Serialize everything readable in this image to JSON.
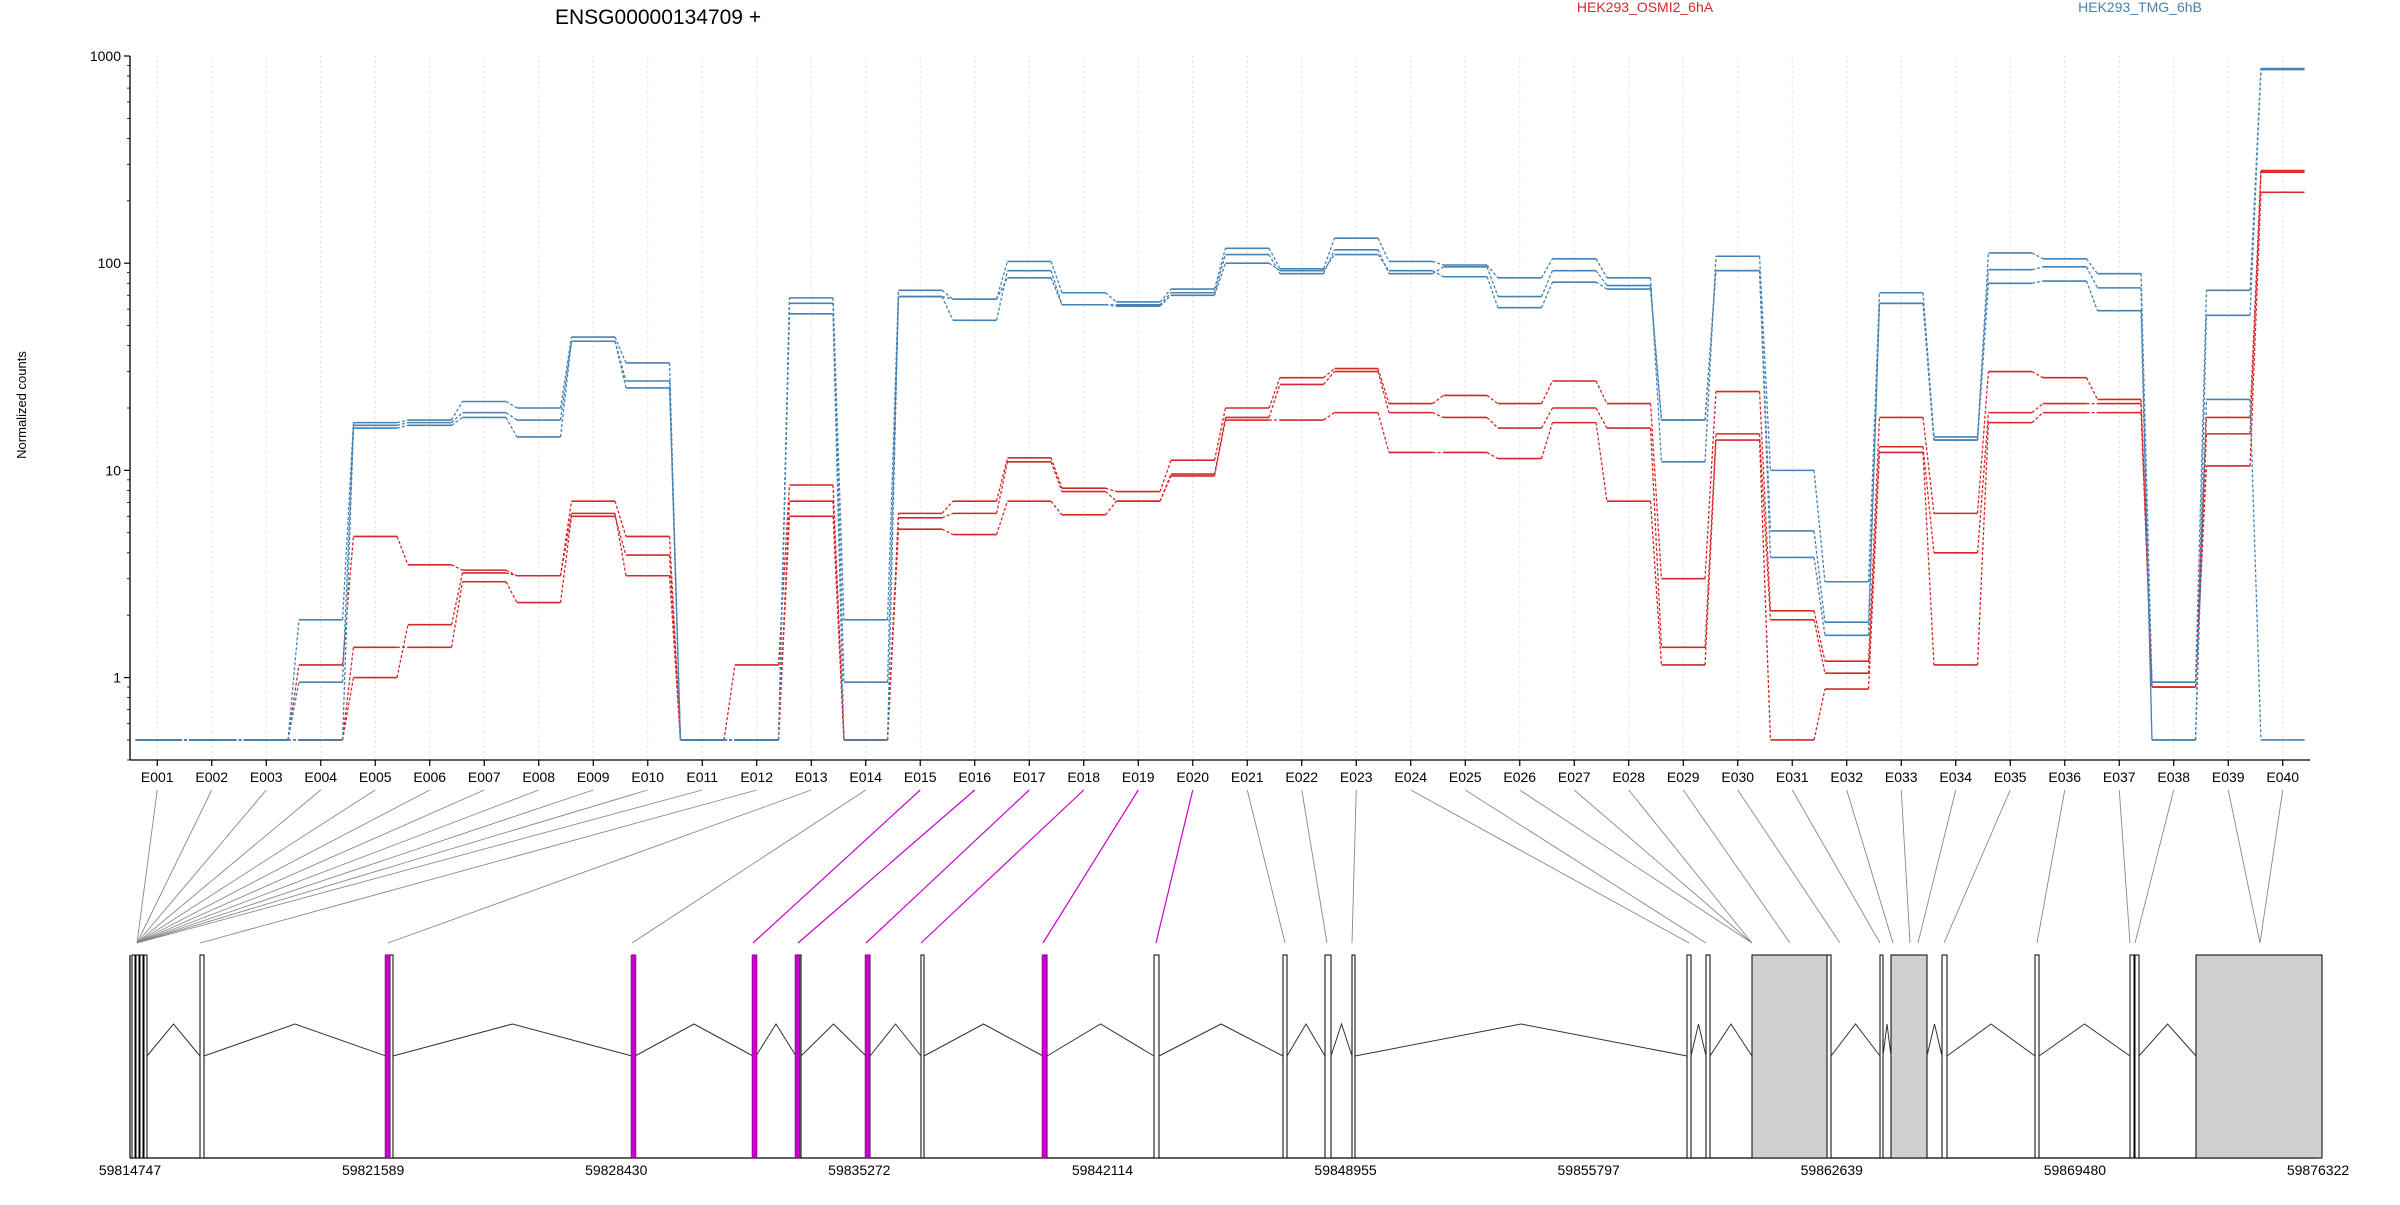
{
  "chart_data": {
    "type": "line",
    "title": "ENSG00000134709 +",
    "ylabel": "Normalized counts",
    "yscale": "log",
    "ylim": [
      0.4,
      1000
    ],
    "yticks": [
      1,
      10,
      100,
      1000
    ],
    "grid": "vertical, light dotted, one per exon",
    "legend_placement": "top",
    "categories": [
      "E001",
      "E002",
      "E003",
      "E004",
      "E005",
      "E006",
      "E007",
      "E008",
      "E009",
      "E010",
      "E011",
      "E012",
      "E013",
      "E014",
      "E015",
      "E016",
      "E017",
      "E018",
      "E019",
      "E020",
      "E021",
      "E022",
      "E023",
      "E024",
      "E025",
      "E026",
      "E027",
      "E028",
      "E029",
      "E030",
      "E031",
      "E032",
      "E033",
      "E034",
      "E035",
      "E036",
      "E037",
      "E038",
      "E039",
      "E040"
    ],
    "groups": [
      {
        "name": "HEK293_OSMI2_6hA",
        "color": "#d62728"
      },
      {
        "name": "HEK293_TMG_6hB",
        "color": "#4682b4"
      }
    ],
    "series": [
      {
        "group": 0,
        "values": [
          0.5,
          0.5,
          0.5,
          1.15,
          4.8,
          3.5,
          3.3,
          3.1,
          7.1,
          4.8,
          0.5,
          1.15,
          8.5,
          0.5,
          6.2,
          7.1,
          11.5,
          8.2,
          7.9,
          11.2,
          20,
          28,
          31,
          21,
          23,
          21,
          27,
          21,
          3.0,
          24,
          2.1,
          1.2,
          18,
          6.2,
          30,
          28,
          22,
          0.95,
          18,
          280
        ]
      },
      {
        "group": 0,
        "values": [
          0.5,
          0.5,
          0.5,
          0.5,
          1.4,
          1.4,
          2.9,
          2.3,
          6.0,
          3.9,
          0.5,
          0.5,
          7.1,
          0.5,
          5.9,
          6.2,
          11.0,
          7.9,
          7.1,
          9.6,
          18,
          26,
          30,
          19,
          18,
          16,
          20,
          16,
          1.4,
          15,
          1.9,
          1.05,
          13,
          4.0,
          19,
          21,
          21,
          0.9,
          15,
          275
        ]
      },
      {
        "group": 0,
        "values": [
          0.5,
          0.5,
          0.5,
          0.5,
          1.0,
          1.8,
          3.2,
          3.1,
          6.2,
          3.1,
          0.5,
          0.5,
          6.0,
          0.5,
          5.2,
          4.9,
          7.1,
          6.1,
          7.1,
          9.4,
          17.5,
          17.5,
          19,
          12.2,
          12.2,
          11.4,
          17,
          7.1,
          1.15,
          14,
          0.5,
          0.88,
          12.2,
          1.15,
          17,
          19,
          19,
          0.9,
          10.5,
          220
        ]
      },
      {
        "group": 1,
        "values": [
          0.5,
          0.5,
          0.5,
          1.9,
          17,
          17.5,
          21.5,
          20,
          44,
          33,
          0.5,
          0.5,
          68,
          1.9,
          74,
          67,
          102,
          72,
          65,
          75,
          118,
          94,
          132,
          102,
          98,
          85,
          105,
          85,
          11,
          108,
          10,
          2.9,
          72,
          14.5,
          112,
          105,
          89,
          0.95,
          74,
          870
        ]
      },
      {
        "group": 1,
        "values": [
          0.5,
          0.5,
          0.5,
          0.95,
          16.5,
          17,
          19,
          17.5,
          42,
          27,
          0.5,
          0.5,
          64,
          0.95,
          69,
          53,
          92,
          63,
          63,
          72,
          110,
          89,
          116,
          89,
          96,
          69,
          92,
          78,
          17.5,
          92,
          5.1,
          1.85,
          64,
          14,
          93,
          96,
          76,
          0.5,
          56,
          860
        ]
      },
      {
        "group": 1,
        "values": [
          0.5,
          0.5,
          0.5,
          0.5,
          16,
          16.5,
          18,
          14.5,
          42,
          25,
          0.5,
          0.5,
          57,
          0.5,
          69,
          67,
          85,
          63,
          62,
          70,
          100,
          92,
          110,
          92,
          86,
          61,
          81,
          75,
          17.5,
          92,
          3.8,
          1.6,
          64,
          14,
          80,
          82,
          59,
          0.5,
          22,
          0.5
        ]
      }
    ],
    "gene_model": {
      "coordinate_labels": [
        "59814747",
        "59821589",
        "59828430",
        "59835272",
        "59842114",
        "59848955",
        "59855797",
        "59862639",
        "59869480",
        "59876322"
      ],
      "highlight_color": "#cc00cc",
      "highlighted_exons": [
        "E015",
        "E016",
        "E017",
        "E018",
        "E019",
        "E020"
      ]
    }
  }
}
